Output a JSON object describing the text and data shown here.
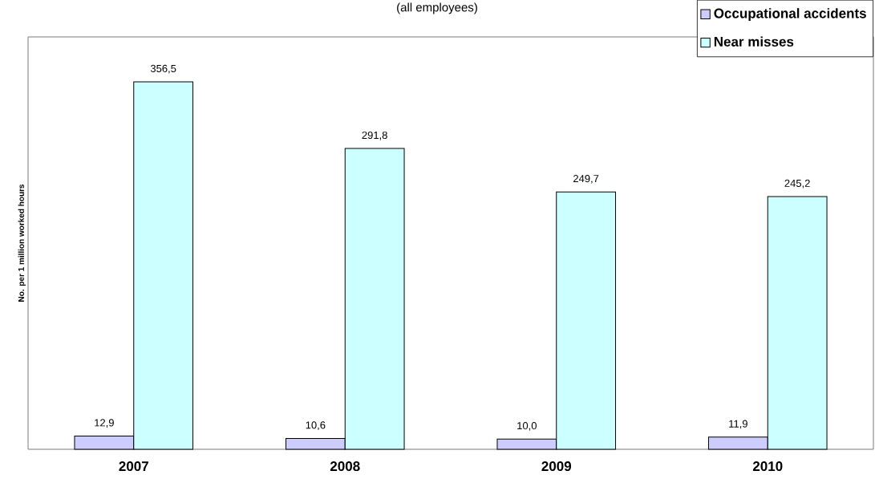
{
  "chart_data": {
    "type": "bar",
    "title": "(all employees)",
    "ylabel": "No. per 1 million worked hours",
    "categories": [
      "2007",
      "2008",
      "2009",
      "2010"
    ],
    "series": [
      {
        "name": "Occupational accidents",
        "color": "#ccccff",
        "values": [
          12.9,
          10.6,
          10.0,
          11.9
        ],
        "value_labels": [
          "12,9",
          "10,6",
          "10,0",
          "11,9"
        ]
      },
      {
        "name": "Near misses",
        "color": "#ccffff",
        "values": [
          356.5,
          291.8,
          249.7,
          245.2
        ],
        "value_labels": [
          "356,5",
          "291,8",
          "249,7",
          "245,2"
        ]
      }
    ],
    "ylim": [
      0,
      400
    ],
    "tick_labels": "x",
    "legend": "top right"
  }
}
